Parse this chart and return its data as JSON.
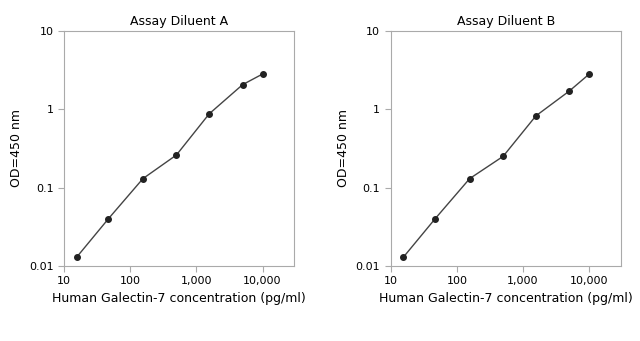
{
  "panel_A": {
    "title": "Assay Diluent A",
    "x": [
      15.6,
      46.9,
      156,
      500,
      1563,
      5000,
      10000
    ],
    "y": [
      0.013,
      0.04,
      0.13,
      0.26,
      0.87,
      2.05,
      2.8
    ]
  },
  "panel_B": {
    "title": "Assay Diluent B",
    "x": [
      15.6,
      46.9,
      156,
      500,
      1563,
      5000,
      10000
    ],
    "y": [
      0.013,
      0.04,
      0.13,
      0.25,
      0.82,
      1.7,
      2.8
    ]
  },
  "xlabel": "Human Galectin-7 concentration (pg/ml)",
  "ylabel": "OD=450 nm",
  "xlim": [
    10,
    30000
  ],
  "ylim": [
    0.01,
    10
  ],
  "line_color": "#444444",
  "marker_color": "#222222",
  "marker_size": 4,
  "line_width": 1.0,
  "bg_color": "#ffffff",
  "spine_color": "#aaaaaa",
  "title_fontsize": 9,
  "label_fontsize": 9,
  "tick_fontsize": 8
}
